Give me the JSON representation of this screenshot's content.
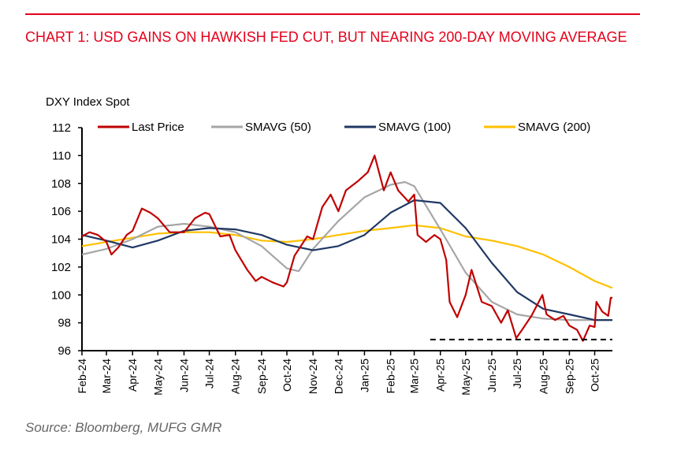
{
  "header": {
    "title": "CHART 1: USD GAINS ON HAWKISH FED CUT, BUT NEARING 200-DAY MOVING AVERAGE"
  },
  "footer": {
    "source": "Source: Bloomberg, MUFG GMR"
  },
  "chart_data": {
    "type": "line",
    "ylabel": "DXY Index Spot",
    "ylim": [
      96,
      112
    ],
    "yticks": [
      96,
      98,
      100,
      102,
      104,
      106,
      108,
      110,
      112
    ],
    "xlim": [
      "2024-02-01",
      "2025-10-22"
    ],
    "xticks": [
      "Feb-24",
      "Mar-24",
      "Apr-24",
      "May-24",
      "Jun-24",
      "Jul-24",
      "Aug-24",
      "Sep-24",
      "Oct-24",
      "Nov-24",
      "Dec-24",
      "Jan-25",
      "Feb-25",
      "Mar-25",
      "Apr-25",
      "May-25",
      "Jun-25",
      "Jul-25",
      "Aug-25",
      "Sep-25",
      "Oct-25"
    ],
    "legend": "top",
    "grid": false,
    "series": [
      {
        "name": "Last Price",
        "color": "#c00000",
        "points": [
          [
            "2024-02-01",
            104.2
          ],
          [
            "2024-02-10",
            104.5
          ],
          [
            "2024-02-20",
            104.3
          ],
          [
            "2024-03-01",
            103.8
          ],
          [
            "2024-03-07",
            102.9
          ],
          [
            "2024-03-15",
            103.4
          ],
          [
            "2024-03-25",
            104.3
          ],
          [
            "2024-04-01",
            104.6
          ],
          [
            "2024-04-12",
            106.2
          ],
          [
            "2024-04-22",
            105.9
          ],
          [
            "2024-05-01",
            105.5
          ],
          [
            "2024-05-15",
            104.5
          ],
          [
            "2024-06-01",
            104.5
          ],
          [
            "2024-06-14",
            105.5
          ],
          [
            "2024-06-26",
            105.9
          ],
          [
            "2024-07-01",
            105.8
          ],
          [
            "2024-07-14",
            104.2
          ],
          [
            "2024-07-25",
            104.3
          ],
          [
            "2024-08-01",
            103.2
          ],
          [
            "2024-08-15",
            101.8
          ],
          [
            "2024-08-25",
            101.0
          ],
          [
            "2024-09-01",
            101.3
          ],
          [
            "2024-09-14",
            100.9
          ],
          [
            "2024-09-27",
            100.6
          ],
          [
            "2024-10-01",
            100.9
          ],
          [
            "2024-10-10",
            102.8
          ],
          [
            "2024-10-25",
            104.2
          ],
          [
            "2024-11-01",
            104.0
          ],
          [
            "2024-11-12",
            106.3
          ],
          [
            "2024-11-22",
            107.2
          ],
          [
            "2024-12-01",
            106.0
          ],
          [
            "2024-12-10",
            107.5
          ],
          [
            "2024-12-25",
            108.2
          ],
          [
            "2025-01-05",
            108.8
          ],
          [
            "2025-01-13",
            110.0
          ],
          [
            "2025-01-24",
            107.5
          ],
          [
            "2025-02-01",
            108.8
          ],
          [
            "2025-02-10",
            107.5
          ],
          [
            "2025-02-22",
            106.7
          ],
          [
            "2025-03-01",
            107.2
          ],
          [
            "2025-03-05",
            104.3
          ],
          [
            "2025-03-15",
            103.8
          ],
          [
            "2025-03-25",
            104.3
          ],
          [
            "2025-04-01",
            104.0
          ],
          [
            "2025-04-08",
            102.5
          ],
          [
            "2025-04-12",
            99.5
          ],
          [
            "2025-04-21",
            98.4
          ],
          [
            "2025-05-01",
            100.0
          ],
          [
            "2025-05-08",
            101.8
          ],
          [
            "2025-05-20",
            99.5
          ],
          [
            "2025-06-01",
            99.2
          ],
          [
            "2025-06-12",
            98.0
          ],
          [
            "2025-06-20",
            98.9
          ],
          [
            "2025-06-30",
            96.9
          ],
          [
            "2025-07-08",
            97.6
          ],
          [
            "2025-07-18",
            98.5
          ],
          [
            "2025-07-31",
            100.0
          ],
          [
            "2025-08-05",
            98.6
          ],
          [
            "2025-08-15",
            98.2
          ],
          [
            "2025-08-25",
            98.5
          ],
          [
            "2025-09-01",
            97.8
          ],
          [
            "2025-09-10",
            97.5
          ],
          [
            "2025-09-17",
            96.7
          ],
          [
            "2025-09-25",
            97.8
          ],
          [
            "2025-10-01",
            97.7
          ],
          [
            "2025-10-03",
            99.5
          ],
          [
            "2025-10-10",
            98.8
          ],
          [
            "2025-10-17",
            98.5
          ],
          [
            "2025-10-20",
            99.8
          ],
          [
            "2025-10-22",
            99.8
          ]
        ]
      },
      {
        "name": "SMAVG (50)",
        "color": "#a6a6a6",
        "points": [
          [
            "2024-02-01",
            102.9
          ],
          [
            "2024-03-01",
            103.3
          ],
          [
            "2024-04-01",
            104.0
          ],
          [
            "2024-05-01",
            104.9
          ],
          [
            "2024-06-01",
            105.1
          ],
          [
            "2024-07-01",
            104.9
          ],
          [
            "2024-08-01",
            104.5
          ],
          [
            "2024-09-01",
            103.5
          ],
          [
            "2024-10-01",
            101.9
          ],
          [
            "2024-10-15",
            101.7
          ],
          [
            "2024-11-01",
            103.3
          ],
          [
            "2024-12-01",
            105.3
          ],
          [
            "2025-01-01",
            107.0
          ],
          [
            "2025-02-01",
            107.9
          ],
          [
            "2025-02-18",
            108.1
          ],
          [
            "2025-03-01",
            107.8
          ],
          [
            "2025-04-01",
            104.7
          ],
          [
            "2025-05-01",
            101.6
          ],
          [
            "2025-06-01",
            99.5
          ],
          [
            "2025-07-01",
            98.6
          ],
          [
            "2025-08-01",
            98.3
          ],
          [
            "2025-09-01",
            98.2
          ],
          [
            "2025-10-01",
            98.2
          ],
          [
            "2025-10-22",
            98.2
          ]
        ]
      },
      {
        "name": "SMAVG (100)",
        "color": "#1f3864",
        "points": [
          [
            "2024-02-01",
            104.3
          ],
          [
            "2024-03-01",
            103.9
          ],
          [
            "2024-04-01",
            103.4
          ],
          [
            "2024-05-01",
            103.9
          ],
          [
            "2024-06-01",
            104.6
          ],
          [
            "2024-07-01",
            104.8
          ],
          [
            "2024-08-01",
            104.7
          ],
          [
            "2024-09-01",
            104.3
          ],
          [
            "2024-10-01",
            103.6
          ],
          [
            "2024-11-01",
            103.2
          ],
          [
            "2024-12-01",
            103.5
          ],
          [
            "2025-01-01",
            104.3
          ],
          [
            "2025-02-01",
            105.9
          ],
          [
            "2025-03-01",
            106.8
          ],
          [
            "2025-04-01",
            106.6
          ],
          [
            "2025-05-01",
            104.8
          ],
          [
            "2025-06-01",
            102.3
          ],
          [
            "2025-07-01",
            100.2
          ],
          [
            "2025-08-01",
            99.0
          ],
          [
            "2025-09-01",
            98.6
          ],
          [
            "2025-10-01",
            98.2
          ],
          [
            "2025-10-22",
            98.2
          ]
        ]
      },
      {
        "name": "SMAVG (200)",
        "color": "#ffc000",
        "points": [
          [
            "2024-02-01",
            103.5
          ],
          [
            "2024-03-01",
            103.8
          ],
          [
            "2024-04-01",
            104.1
          ],
          [
            "2024-05-01",
            104.4
          ],
          [
            "2024-06-01",
            104.5
          ],
          [
            "2024-07-01",
            104.5
          ],
          [
            "2024-08-01",
            104.3
          ],
          [
            "2024-09-01",
            103.9
          ],
          [
            "2024-10-01",
            103.8
          ],
          [
            "2024-11-01",
            104.0
          ],
          [
            "2024-12-01",
            104.3
          ],
          [
            "2025-01-01",
            104.6
          ],
          [
            "2025-02-01",
            104.8
          ],
          [
            "2025-03-01",
            105.0
          ],
          [
            "2025-04-01",
            104.8
          ],
          [
            "2025-05-01",
            104.2
          ],
          [
            "2025-06-01",
            103.9
          ],
          [
            "2025-07-01",
            103.5
          ],
          [
            "2025-08-01",
            102.9
          ],
          [
            "2025-09-01",
            102.0
          ],
          [
            "2025-10-01",
            101.0
          ],
          [
            "2025-10-22",
            100.5
          ]
        ]
      }
    ],
    "annotations": [
      {
        "type": "horizontal-dashed-line",
        "y": 96.8,
        "from": "2025-03-20",
        "to": "2025-10-22",
        "color": "#000000"
      }
    ]
  }
}
